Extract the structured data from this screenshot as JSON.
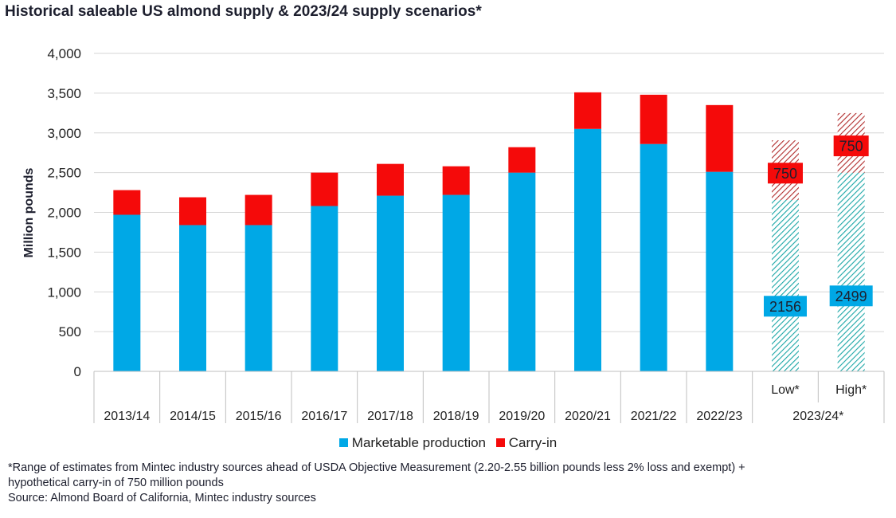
{
  "title": "Historical saleable US almond supply & 2023/24 supply scenarios*",
  "chart_data": {
    "type": "bar",
    "stacked": true,
    "ylabel": "Million pounds",
    "xlabel": "",
    "ylim": [
      0,
      4000
    ],
    "yticks": [
      0,
      500,
      1000,
      1500,
      2000,
      2500,
      3000,
      3500,
      4000
    ],
    "ytick_labels": [
      "0",
      "500",
      "1,000",
      "1,500",
      "2,000",
      "2,500",
      "3,000",
      "3,500",
      "4,000"
    ],
    "grid": true,
    "categories": [
      "2013/14",
      "2014/15",
      "2015/16",
      "2016/17",
      "2017/18",
      "2018/19",
      "2019/20",
      "2020/21",
      "2021/22",
      "2022/23",
      "Low*",
      "High*"
    ],
    "group_labels": [
      {
        "label": "2023/24*",
        "categories": [
          "Low*",
          "High*"
        ]
      }
    ],
    "series": [
      {
        "name": "Marketable production",
        "color": "#00a8e6",
        "values": [
          1970,
          1840,
          1840,
          2080,
          2210,
          2220,
          2500,
          3050,
          2860,
          2510,
          2156,
          2499
        ]
      },
      {
        "name": "Carry-in",
        "color": "#f50a0a",
        "values": [
          310,
          350,
          380,
          420,
          400,
          360,
          320,
          460,
          620,
          840,
          750,
          750
        ]
      }
    ],
    "hatched_categories": [
      "Low*",
      "High*"
    ],
    "data_labels": [
      {
        "category": "Low*",
        "series": "Marketable production",
        "text": "2156"
      },
      {
        "category": "Low*",
        "series": "Carry-in",
        "text": "750"
      },
      {
        "category": "High*",
        "series": "Marketable production",
        "text": "2499"
      },
      {
        "category": "High*",
        "series": "Carry-in",
        "text": "750"
      }
    ],
    "legend_position": "bottom"
  },
  "footnotes": [
    "*Range of estimates from Mintec industry sources ahead of USDA Objective Measurement (2.20-2.55 billion pounds less 2% loss and exempt) +",
    "hypothetical carry-in of 750 million pounds",
    "Source: Almond Board of California, Mintec industry sources"
  ]
}
